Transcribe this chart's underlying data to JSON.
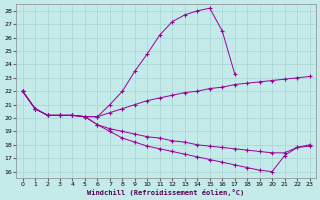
{
  "xlabel": "Windchill (Refroidissement éolien,°C)",
  "background_color": "#c5eaea",
  "grid_color": "#add8d8",
  "line_color": "#990099",
  "xlim": [
    -0.5,
    23.5
  ],
  "ylim": [
    15.5,
    28.5
  ],
  "xticks": [
    0,
    1,
    2,
    3,
    4,
    5,
    6,
    7,
    8,
    9,
    10,
    11,
    12,
    13,
    14,
    15,
    16,
    17,
    18,
    19,
    20,
    21,
    22,
    23
  ],
  "yticks": [
    16,
    17,
    18,
    19,
    20,
    21,
    22,
    23,
    24,
    25,
    26,
    27,
    28
  ],
  "lines": [
    {
      "x": [
        0,
        1,
        2,
        3,
        4,
        5,
        6,
        7,
        8,
        9,
        10,
        11,
        12,
        13,
        14,
        15,
        16,
        17
      ],
      "y": [
        22.0,
        20.7,
        20.2,
        20.2,
        20.2,
        20.1,
        20.1,
        21.0,
        22.0,
        23.5,
        24.8,
        26.2,
        27.2,
        27.7,
        28.0,
        28.2,
        26.5,
        23.3
      ]
    },
    {
      "x": [
        0,
        1,
        2,
        3,
        4,
        5,
        6,
        7,
        8,
        9,
        10,
        11,
        12,
        13,
        14,
        15,
        16,
        17,
        18,
        19,
        20,
        21,
        22,
        23
      ],
      "y": [
        22.0,
        20.7,
        20.2,
        20.2,
        20.2,
        20.1,
        20.1,
        20.4,
        20.7,
        21.0,
        21.3,
        21.5,
        21.7,
        21.9,
        22.0,
        22.2,
        22.3,
        22.5,
        22.6,
        22.7,
        22.8,
        22.9,
        23.0,
        23.1
      ]
    },
    {
      "x": [
        0,
        1,
        2,
        3,
        4,
        5,
        6,
        7,
        8,
        9,
        10,
        11,
        12,
        13,
        14,
        15,
        16,
        17,
        18,
        19,
        20,
        21,
        22,
        23
      ],
      "y": [
        22.0,
        20.7,
        20.2,
        20.2,
        20.2,
        20.1,
        19.5,
        19.2,
        19.0,
        18.8,
        18.6,
        18.5,
        18.3,
        18.2,
        18.0,
        17.9,
        17.8,
        17.7,
        17.6,
        17.5,
        17.4,
        17.4,
        17.8,
        17.9
      ]
    },
    {
      "x": [
        0,
        1,
        2,
        3,
        4,
        5,
        6,
        7,
        8,
        9,
        10,
        11,
        12,
        13,
        14,
        15,
        16,
        17,
        18,
        19,
        20,
        21,
        22,
        23
      ],
      "y": [
        22.0,
        20.7,
        20.2,
        20.2,
        20.2,
        20.1,
        19.5,
        19.0,
        18.5,
        18.2,
        17.9,
        17.7,
        17.5,
        17.3,
        17.1,
        16.9,
        16.7,
        16.5,
        16.3,
        16.1,
        16.0,
        17.2,
        17.8,
        18.0
      ]
    }
  ]
}
